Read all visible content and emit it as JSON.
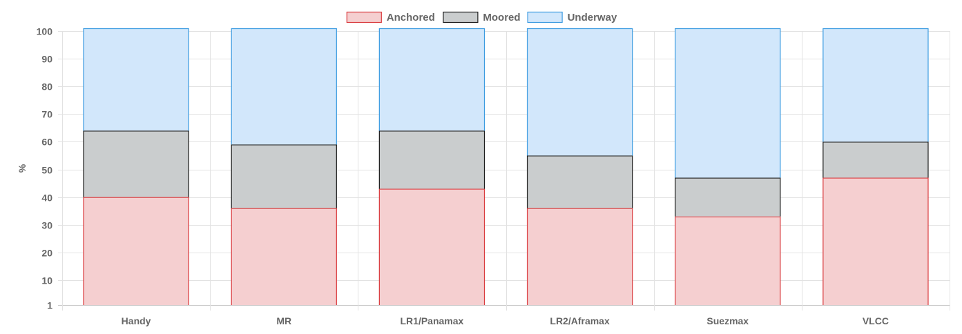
{
  "chart_data": {
    "type": "bar",
    "stacked": true,
    "categories": [
      "Handy",
      "MR",
      "LR1/Panamax",
      "LR2/Aframax",
      "Suezmax",
      "VLCC"
    ],
    "series": [
      {
        "name": "Anchored",
        "values": [
          39,
          35,
          42,
          35,
          32,
          46
        ],
        "fill": "#f5cfd0",
        "stroke": "#d9393c"
      },
      {
        "name": "Moored",
        "values": [
          24,
          23,
          21,
          19,
          14,
          13
        ],
        "fill": "#cacdce",
        "stroke": "#1a1a1a"
      },
      {
        "name": "Underway",
        "values": [
          37,
          42,
          37,
          46,
          54,
          41
        ],
        "fill": "#d2e7fb",
        "stroke": "#3a9ae0"
      }
    ],
    "ylabel": "%",
    "xlabel": "",
    "ylim": [
      1,
      100
    ],
    "yticks": [
      1,
      10,
      20,
      30,
      40,
      50,
      60,
      70,
      80,
      90,
      100
    ],
    "grid": true,
    "legend_position": "top-center"
  }
}
